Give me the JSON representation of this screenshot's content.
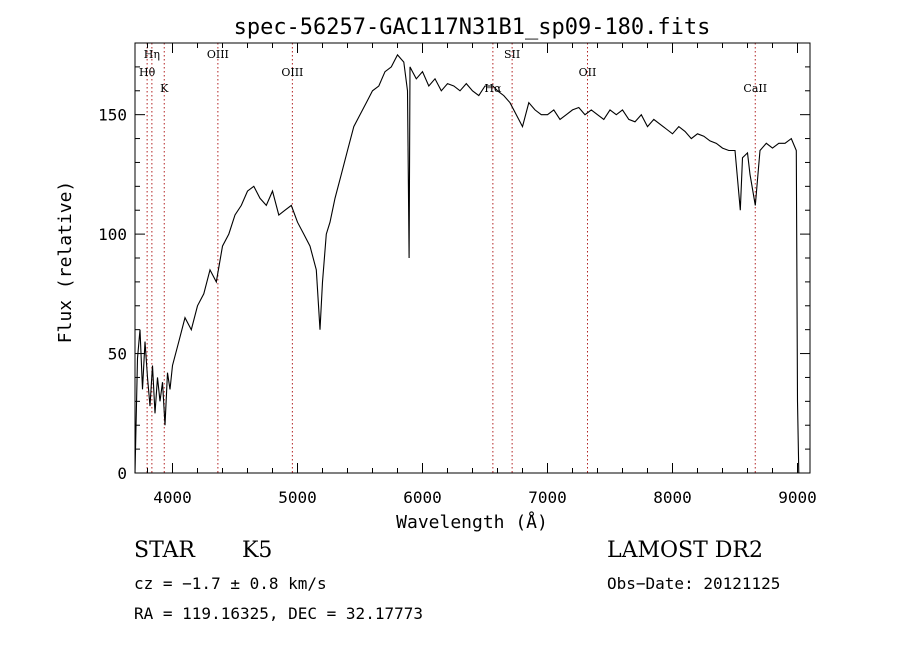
{
  "chart_data": {
    "type": "line",
    "title": "spec-56257-GAC117N31B1_sp09-180.fits",
    "xlabel": "Wavelength (Å)",
    "ylabel": "Flux (relative)",
    "xlim": [
      3700,
      9100
    ],
    "ylim": [
      0,
      180
    ],
    "xticks": [
      4000,
      5000,
      6000,
      7000,
      8000,
      9000
    ],
    "yticks": [
      0,
      50,
      100,
      150
    ],
    "grid": false,
    "line_color": "#000000",
    "marker_color": "#b22222",
    "series": [
      {
        "x": [
          3700,
          3720,
          3740,
          3760,
          3780,
          3800,
          3820,
          3840,
          3860,
          3880,
          3900,
          3920,
          3940,
          3960,
          3980,
          4000,
          4050,
          4100,
          4150,
          4200,
          4250,
          4300,
          4350,
          4400,
          4450,
          4500,
          4550,
          4600,
          4650,
          4700,
          4750,
          4800,
          4850,
          4900,
          4950,
          5000,
          5050,
          5100,
          5150,
          5180,
          5200,
          5230,
          5260,
          5300,
          5350,
          5400,
          5450,
          5500,
          5550,
          5600,
          5650,
          5700,
          5750,
          5800,
          5850,
          5880,
          5893,
          5900,
          5920,
          5950,
          6000,
          6050,
          6100,
          6150,
          6200,
          6250,
          6300,
          6350,
          6400,
          6450,
          6500,
          6563,
          6600,
          6650,
          6700,
          6750,
          6800,
          6850,
          6900,
          6950,
          7000,
          7050,
          7100,
          7150,
          7200,
          7250,
          7300,
          7350,
          7400,
          7450,
          7500,
          7550,
          7600,
          7650,
          7700,
          7750,
          7800,
          7850,
          7900,
          7950,
          8000,
          8050,
          8100,
          8150,
          8200,
          8250,
          8300,
          8350,
          8400,
          8450,
          8500,
          8542,
          8560,
          8600,
          8620,
          8662,
          8700,
          8750,
          8800,
          8850,
          8900,
          8950,
          8990,
          9000,
          9010
        ],
        "y": [
          0,
          48,
          60,
          35,
          55,
          40,
          28,
          45,
          25,
          40,
          30,
          38,
          20,
          42,
          35,
          45,
          55,
          65,
          60,
          70,
          75,
          85,
          80,
          95,
          100,
          108,
          112,
          118,
          120,
          115,
          112,
          118,
          108,
          110,
          112,
          105,
          100,
          95,
          85,
          60,
          80,
          100,
          105,
          115,
          125,
          135,
          145,
          150,
          155,
          160,
          162,
          168,
          170,
          175,
          172,
          160,
          90,
          170,
          168,
          165,
          168,
          162,
          165,
          160,
          163,
          162,
          160,
          163,
          160,
          158,
          162,
          162,
          160,
          158,
          155,
          150,
          145,
          155,
          152,
          150,
          150,
          152,
          148,
          150,
          152,
          153,
          150,
          152,
          150,
          148,
          152,
          150,
          152,
          148,
          147,
          150,
          145,
          148,
          146,
          144,
          142,
          145,
          143,
          140,
          142,
          141,
          139,
          138,
          136,
          135,
          135,
          110,
          132,
          134,
          125,
          112,
          135,
          138,
          136,
          138,
          138,
          140,
          135,
          30,
          0
        ]
      }
    ],
    "line_markers": [
      {
        "label": "Hη",
        "x": 3835
      },
      {
        "label": "Hθ",
        "x": 3797
      },
      {
        "label": "K",
        "x": 3934
      },
      {
        "label": "OIII",
        "x": 4363
      },
      {
        "label": "OIII",
        "x": 4959
      },
      {
        "label": "Hα",
        "x": 6563
      },
      {
        "label": "SII",
        "x": 6717
      },
      {
        "label": "OII",
        "x": 7320
      },
      {
        "label": "CaII",
        "x": 8662
      }
    ]
  },
  "info": {
    "object_class": "STAR",
    "subclass": "K5",
    "survey": "LAMOST DR2",
    "redshift": "cz = −1.7 ± 0.8 km/s",
    "obs_date": "Obs−Date: 20121125",
    "coords": "RA = 119.16325, DEC =  32.17773"
  }
}
